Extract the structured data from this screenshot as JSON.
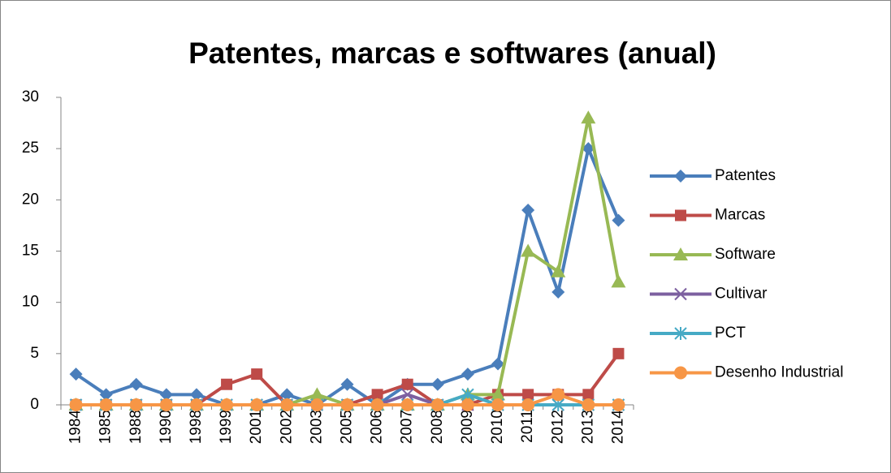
{
  "chart_data": {
    "type": "line",
    "title": "Patentes, marcas e softwares (anual)",
    "categories": [
      "1984",
      "1985",
      "1988",
      "1990",
      "1998",
      "1999",
      "2001",
      "2002",
      "2003",
      "2005",
      "2006",
      "2007",
      "2008",
      "2009",
      "2010",
      "2011",
      "2012",
      "2013",
      "2014"
    ],
    "series": [
      {
        "name": "Patentes",
        "color": "#4a7ebb",
        "marker": "diamond",
        "values": [
          3,
          1,
          2,
          1,
          1,
          0,
          0,
          1,
          0,
          2,
          0,
          2,
          2,
          3,
          4,
          19,
          11,
          25,
          18
        ]
      },
      {
        "name": "Marcas",
        "color": "#be4b48",
        "marker": "square",
        "values": [
          0,
          0,
          0,
          0,
          0,
          2,
          3,
          0,
          0,
          0,
          1,
          2,
          0,
          0,
          1,
          1,
          1,
          1,
          5
        ]
      },
      {
        "name": "Software",
        "color": "#98b954",
        "marker": "triangle",
        "values": [
          0,
          0,
          0,
          0,
          0,
          0,
          0,
          0,
          1,
          0,
          0,
          0,
          0,
          1,
          1,
          15,
          13,
          28,
          12
        ]
      },
      {
        "name": "Cultivar",
        "color": "#7d60a0",
        "marker": "x",
        "values": [
          0,
          0,
          0,
          0,
          0,
          0,
          0,
          0,
          0,
          0,
          0,
          1,
          0,
          0,
          0,
          0,
          0,
          0,
          0
        ]
      },
      {
        "name": "PCT",
        "color": "#46aac5",
        "marker": "star",
        "values": [
          0,
          0,
          0,
          0,
          0,
          0,
          0,
          0,
          0,
          0,
          0,
          0,
          0,
          1,
          0,
          0,
          0,
          0,
          0
        ]
      },
      {
        "name": "Desenho Industrial",
        "color": "#f79646",
        "marker": "circle",
        "values": [
          0,
          0,
          0,
          0,
          0,
          0,
          0,
          0,
          0,
          0,
          0,
          0,
          0,
          0,
          0,
          0,
          1,
          0,
          0
        ]
      }
    ],
    "ylim": [
      0,
      30
    ],
    "yticks": [
      0,
      5,
      10,
      15,
      20,
      25,
      30
    ],
    "grid": false,
    "legend": "right"
  }
}
